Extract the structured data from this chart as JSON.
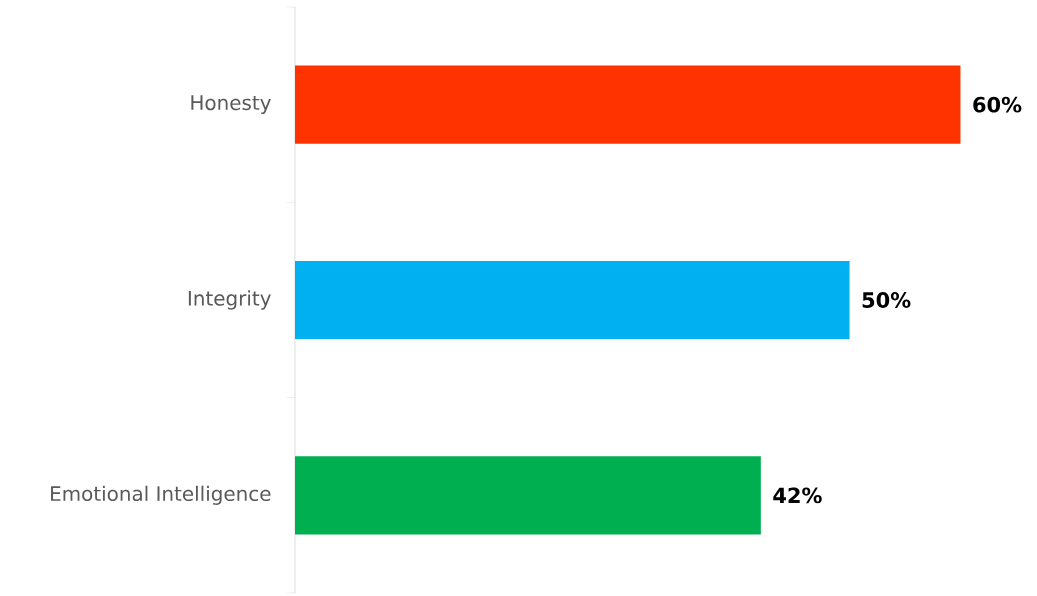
{
  "chart_data": {
    "type": "bar",
    "orientation": "horizontal",
    "categories": [
      "Honesty",
      "Integrity",
      "Emotional Intelligence"
    ],
    "values": [
      60,
      50,
      42
    ],
    "colors": [
      "#ff3300",
      "#00b0f0",
      "#00b050"
    ],
    "value_labels": [
      "60%",
      "50%",
      "42%"
    ]
  }
}
